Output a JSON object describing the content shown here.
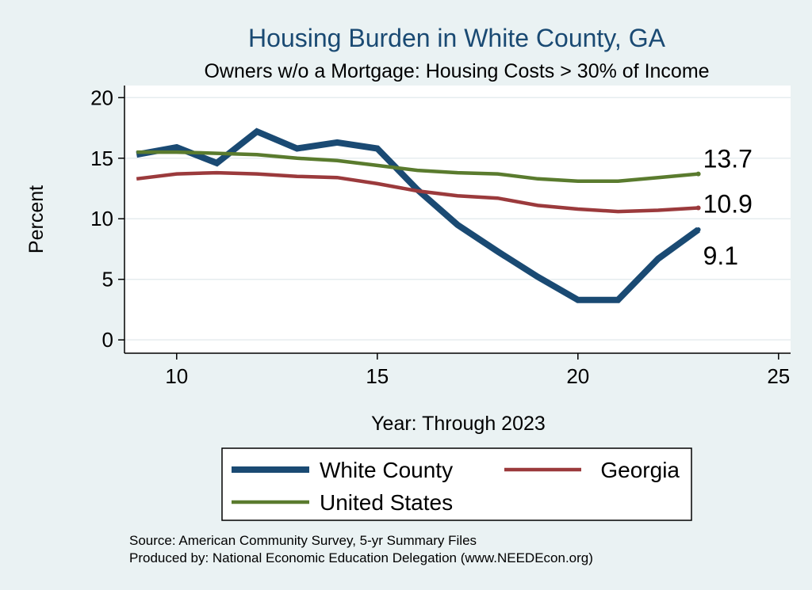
{
  "chart_data": {
    "type": "line",
    "title": "Housing Burden in White County, GA",
    "subtitle": "Owners w/o a Mortgage: Housing Costs > 30% of Income",
    "xlabel": "Year: Through 2023",
    "ylabel": "Percent",
    "xlim": [
      8.7,
      25.3
    ],
    "ylim": [
      -1.1,
      21
    ],
    "xticks": [
      10,
      15,
      20,
      25
    ],
    "yticks": [
      0,
      5,
      10,
      15,
      20
    ],
    "grid": "horizontal",
    "x": [
      9,
      10,
      11,
      12,
      13,
      14,
      15,
      16,
      17,
      18,
      19,
      20,
      21,
      22,
      23
    ],
    "series": [
      {
        "name": "White County",
        "color": "#1a4a73",
        "width": "thick",
        "values": [
          15.3,
          15.9,
          14.6,
          17.2,
          15.8,
          16.3,
          15.8,
          12.4,
          9.5,
          7.3,
          5.2,
          3.3,
          3.3,
          6.7,
          9.1
        ],
        "end_label": "9.1"
      },
      {
        "name": "Georgia",
        "color": "#9b3a3c",
        "width": "medium",
        "values": [
          13.3,
          13.7,
          13.8,
          13.7,
          13.5,
          13.4,
          12.9,
          12.3,
          11.9,
          11.7,
          11.1,
          10.8,
          10.6,
          10.7,
          10.9
        ],
        "end_label": "10.9"
      },
      {
        "name": "United States",
        "color": "#5a7b2e",
        "width": "medium",
        "values": [
          15.5,
          15.5,
          15.4,
          15.3,
          15.0,
          14.8,
          14.4,
          14.0,
          13.8,
          13.7,
          13.3,
          13.1,
          13.1,
          13.4,
          13.7
        ],
        "end_label": "13.7"
      }
    ],
    "legend": {
      "position": "bottom",
      "entries": [
        "White County",
        "Georgia",
        "United States"
      ]
    },
    "notes": [
      "Source: American Community Survey, 5-yr Summary Files",
      "Produced by: National Economic Education Delegation (www.NEEDEcon.org)"
    ]
  }
}
